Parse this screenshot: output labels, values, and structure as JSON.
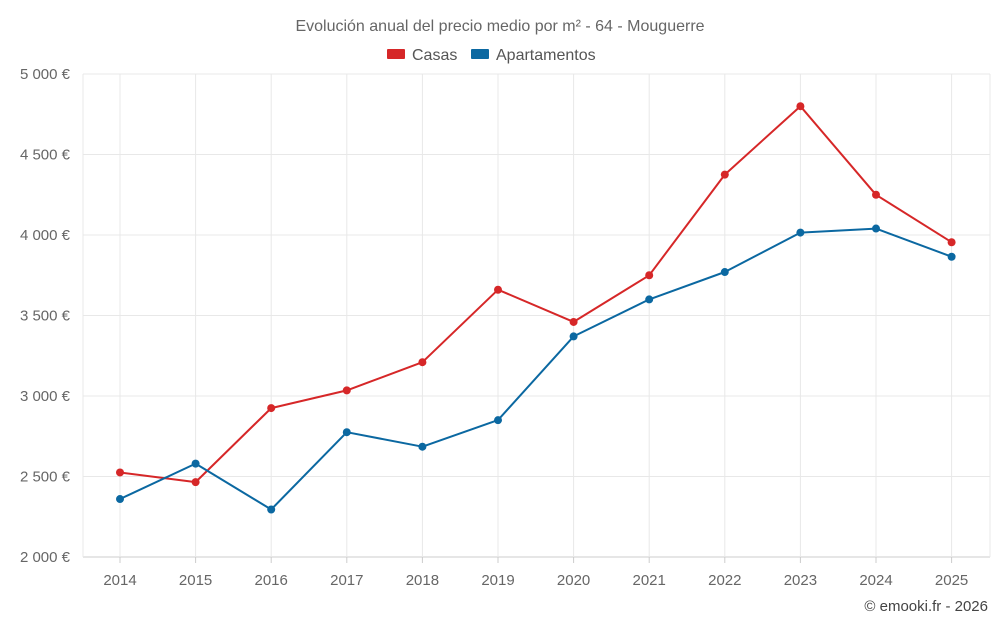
{
  "chart_data": {
    "type": "line",
    "title": "Evolución anual del precio medio por m² - 64 - Mouguerre",
    "categories": [
      "2014",
      "2015",
      "2016",
      "2017",
      "2018",
      "2019",
      "2020",
      "2021",
      "2022",
      "2023",
      "2024",
      "2025"
    ],
    "ylim": [
      2000,
      5000
    ],
    "yticks": [
      2000,
      2500,
      3000,
      3500,
      4000,
      4500,
      5000
    ],
    "ytick_labels": [
      "2 000 €",
      "2 500 €",
      "3 000 €",
      "3 500 €",
      "4 000 €",
      "4 500 €",
      "5 000 €"
    ],
    "grid": true,
    "legend_position": "top-center",
    "series": [
      {
        "name": "Casas",
        "color": "#d62728",
        "values": [
          2525,
          2465,
          2925,
          3035,
          3210,
          3660,
          3460,
          3750,
          4375,
          4800,
          4250,
          3955
        ]
      },
      {
        "name": "Apartamentos",
        "color": "#0b68a1",
        "values": [
          2360,
          2580,
          2295,
          2775,
          2685,
          2850,
          3370,
          3600,
          3770,
          4015,
          4040,
          3865
        ]
      }
    ]
  },
  "credit": "© emooki.fr - 2026"
}
